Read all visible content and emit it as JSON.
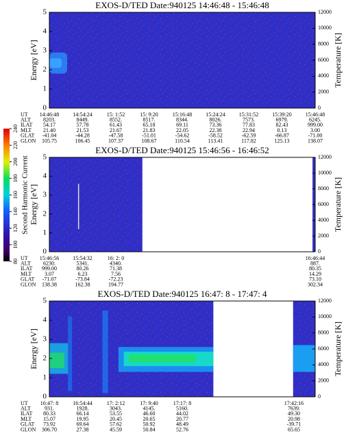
{
  "colorbar": {
    "label": "Second Harmonic Current",
    "lim": [
      80,
      240
    ],
    "ticks": [
      80,
      100,
      120,
      140,
      160,
      180,
      200,
      220,
      240
    ]
  },
  "panels": [
    {
      "title": "EXOS-D/TED   Date:940125  14:46:48 - 15:46:48",
      "y_label": "Energy [eV]",
      "ylim": [
        0,
        5
      ],
      "yticks": [
        0,
        1,
        2,
        3,
        4,
        5
      ],
      "y2_label": "Temperature [K]",
      "y2lim": [
        0,
        12000
      ],
      "y2ticks": [
        0,
        2000,
        4000,
        6000,
        8000,
        10000,
        12000
      ],
      "rows": [
        "UT",
        "ALT",
        "ILAT",
        "MLT",
        "GLAT",
        "GLON"
      ],
      "columns": [
        [
          "14:46:48",
          "8203.",
          "54.17",
          "21.40",
          "-41.04",
          "105.75"
        ],
        [
          "14:54:24",
          "8449.",
          "57.78",
          "21.53",
          "-44.28",
          "106.45"
        ],
        [
          "15: 1:52",
          "8552.",
          "61.43",
          "21.67",
          "-47.58",
          "107.37"
        ],
        [
          "15: 9:20",
          "8517.",
          "65.18",
          "21.83",
          "-51.01",
          "108.67"
        ],
        [
          "15:16:48",
          "8344.",
          "69.11",
          "22.05",
          "-54.62",
          "110.54"
        ],
        [
          "15:24:24",
          "8026.",
          "73.36",
          "22.38",
          "-58.52",
          "113.41"
        ],
        [
          "15:31:52",
          "7573.",
          "77.83",
          "22.94",
          "-62.59",
          "117.82"
        ],
        [
          "15:39:20",
          "6979.",
          "82.43",
          "0.13",
          "-66.87",
          "125.13"
        ],
        [
          "15:46:48",
          "6245.",
          "999.00",
          "3.00",
          "-71.00",
          "138.07"
        ]
      ]
    },
    {
      "title": "EXOS-D/TED   Date:940125  15:46:56 - 16:46:52",
      "y_label": "Energy [eV]",
      "ylim": [
        0,
        5
      ],
      "yticks": [
        0,
        1,
        2,
        3,
        4,
        5
      ],
      "y2_label": "Temperature [K]",
      "y2lim": [
        0,
        12000
      ],
      "y2ticks": [
        0,
        2000,
        4000,
        6000,
        8000,
        10000,
        12000
      ],
      "rows": [
        "UT",
        "ALT",
        "ILAT",
        "MLT",
        "GLAT",
        "GLON"
      ],
      "columns": [
        [
          "15:46:56",
          "6230.",
          "999.00",
          "3.07",
          "-71.07",
          "138.38"
        ],
        [
          "15:54:32",
          "5341.",
          "80.26",
          "6.23",
          "-73.84",
          "162.38"
        ],
        [
          "16: 2: 0",
          "4340.",
          "71.38",
          "7.56",
          "-72.23",
          "194.77"
        ],
        [
          "16:46:44",
          "887.",
          "80.35",
          "14.29",
          "73.10",
          "302.34"
        ]
      ]
    },
    {
      "title": "EXOS-D/TED   Date:940125  16:47: 8 - 17:47: 4",
      "y_label": "Energy [eV]",
      "ylim": [
        0,
        5
      ],
      "yticks": [
        0,
        1,
        2,
        3,
        4,
        5
      ],
      "y2_label": "Temperature [K]",
      "y2lim": [
        0,
        12000
      ],
      "y2ticks": [
        0,
        2000,
        4000,
        6000,
        8000,
        10000,
        12000
      ],
      "rows": [
        "UT",
        "ALT",
        "ILAT",
        "MLT",
        "GLAT",
        "GLON"
      ],
      "columns": [
        [
          "16:47: 8",
          "931.",
          "80.33",
          "15.07",
          "73.92",
          "306.70"
        ],
        [
          "16:54:44",
          "1928.",
          "66.14",
          "19.95",
          "69.64",
          "27.38"
        ],
        [
          "17: 2:12",
          "3043.",
          "53.55",
          "20.45",
          "57.62",
          "45.59"
        ],
        [
          "17: 9:40",
          "4145.",
          "46.60",
          "20.65",
          "50.92",
          "50.84"
        ],
        [
          "17:17: 8",
          "5160.",
          "44.02",
          "20.77",
          "48.49",
          "52.76"
        ],
        [
          "17:42:16",
          "7639.",
          "49.30",
          "20.98",
          "-39.71",
          "65.65"
        ]
      ]
    }
  ]
}
